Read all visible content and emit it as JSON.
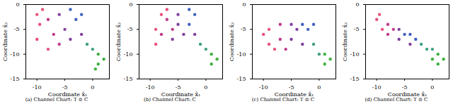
{
  "chart_data": [
    {
      "type": "scatter",
      "title": "(a) Channel Chart: T ⊙ C",
      "x_label": "Coordinate x̂₁",
      "y_label": "Coordinate x̂₂",
      "xlim": [
        -12,
        3
      ],
      "ylim": [
        -15,
        0
      ],
      "xticks": [
        -10,
        -5,
        0
      ],
      "yticks": [
        -15,
        -10,
        -5,
        0
      ],
      "x": [
        -10,
        -9,
        -9.5,
        -10,
        -8,
        -8,
        -7,
        -6,
        -6,
        -5,
        -4,
        -4,
        -3,
        -2,
        -2,
        -1,
        0,
        1,
        1,
        2,
        0.5
      ],
      "values": [
        -2,
        -1,
        -4,
        -7,
        -9,
        -3,
        -6,
        -8,
        -2,
        -5,
        -7,
        -1,
        -3,
        -2,
        -6,
        -8,
        -9,
        -10,
        -12,
        -11,
        -13
      ],
      "colors": [
        "#e8507a",
        "#e8507a",
        "#e8507a",
        "#e8507a",
        "#e8507a",
        "#c03a8a",
        "#c03a8a",
        "#c03a8a",
        "#8040a0",
        "#8040a0",
        "#8040a0",
        "#4060c0",
        "#4060c0",
        "#4060c0",
        "#8040a0",
        "#40a080",
        "#40a080",
        "#40b040",
        "#40b040",
        "#40b040",
        "#40b040"
      ]
    },
    {
      "type": "scatter",
      "title": "(b) Channel Chart: C",
      "x_label": "Coordinate x̂₁",
      "y_label": "Coordinate x̂₂",
      "xlim": [
        -12,
        3
      ],
      "ylim": [
        -15,
        0
      ],
      "xticks": [
        -10,
        -5,
        0
      ],
      "yticks": [
        -15,
        -10,
        -5,
        0
      ],
      "x": [
        -8,
        -7,
        -9,
        -9,
        -8,
        -7,
        -6,
        -6,
        -5,
        -5,
        -4,
        -3,
        -2,
        -3,
        -2,
        -1,
        0,
        1,
        1,
        2
      ],
      "values": [
        -2,
        -1,
        -5,
        -8,
        -6,
        -3,
        -5,
        -7,
        -2,
        -4,
        -6,
        -1,
        -2,
        -4,
        -6,
        -8,
        -9,
        -10,
        -12,
        -11
      ],
      "colors": [
        "#e8507a",
        "#e8507a",
        "#e8507a",
        "#e8507a",
        "#c03a8a",
        "#c03a8a",
        "#c03a8a",
        "#8040a0",
        "#8040a0",
        "#8040a0",
        "#8040a0",
        "#4060c0",
        "#4060c0",
        "#4060c0",
        "#8040a0",
        "#40a080",
        "#40a080",
        "#40b040",
        "#40b040",
        "#40b040"
      ]
    },
    {
      "type": "scatter",
      "title": "(c) Channel Chart: T ⊙ C",
      "x_label": "Coordinate x̂₁",
      "y_label": "Coordinate x̂₂",
      "xlim": [
        -12,
        3
      ],
      "ylim": [
        -15,
        0
      ],
      "xticks": [
        -10,
        -5,
        0
      ],
      "yticks": [
        -15,
        -10,
        -5,
        0
      ],
      "x": [
        -10,
        -9,
        -9,
        -8,
        -7,
        -7,
        -6,
        -5,
        -5,
        -4,
        -3,
        -3,
        -2,
        -1,
        -1,
        0,
        1,
        1,
        2
      ],
      "values": [
        -6,
        -5,
        -8,
        -9,
        -4,
        -7,
        -9,
        -4,
        -7,
        -5,
        -4,
        -8,
        -5,
        -4,
        -8,
        -10,
        -10,
        -12,
        -11
      ],
      "colors": [
        "#e8507a",
        "#e8507a",
        "#e8507a",
        "#e8507a",
        "#c03a8a",
        "#c03a8a",
        "#c03a8a",
        "#8040a0",
        "#8040a0",
        "#8040a0",
        "#4060c0",
        "#8040a0",
        "#4060c0",
        "#4060c0",
        "#40a080",
        "#40a080",
        "#40b040",
        "#40b040",
        "#40b040"
      ]
    },
    {
      "type": "scatter",
      "title": "(d) Channel Chart: T ⊙ C",
      "x_label": "Coordinate x̂₁",
      "y_label": "Coordinate x̂₂",
      "xlim": [
        -12,
        3
      ],
      "ylim": [
        -15,
        0
      ],
      "xticks": [
        -10,
        -5,
        0
      ],
      "yticks": [
        -15,
        -10,
        -5,
        0
      ],
      "x": [
        -10,
        -9.5,
        -9,
        -8,
        -8,
        -7,
        -6,
        -6,
        -5,
        -4,
        -4,
        -3,
        -2,
        -1,
        0,
        0,
        1,
        1,
        2
      ],
      "values": [
        -3,
        -2,
        -5,
        -4,
        -6,
        -5,
        -5,
        -7,
        -6,
        -6,
        -8,
        -7,
        -8,
        -9,
        -9,
        -11,
        -10,
        -12,
        -11
      ],
      "colors": [
        "#e8507a",
        "#e8507a",
        "#e8507a",
        "#c03a8a",
        "#c03a8a",
        "#c03a8a",
        "#8040a0",
        "#8040a0",
        "#4060c0",
        "#4060c0",
        "#8040a0",
        "#4060c0",
        "#40a080",
        "#40a080",
        "#40a080",
        "#40b040",
        "#40b040",
        "#40b040",
        "#40b040"
      ]
    }
  ]
}
